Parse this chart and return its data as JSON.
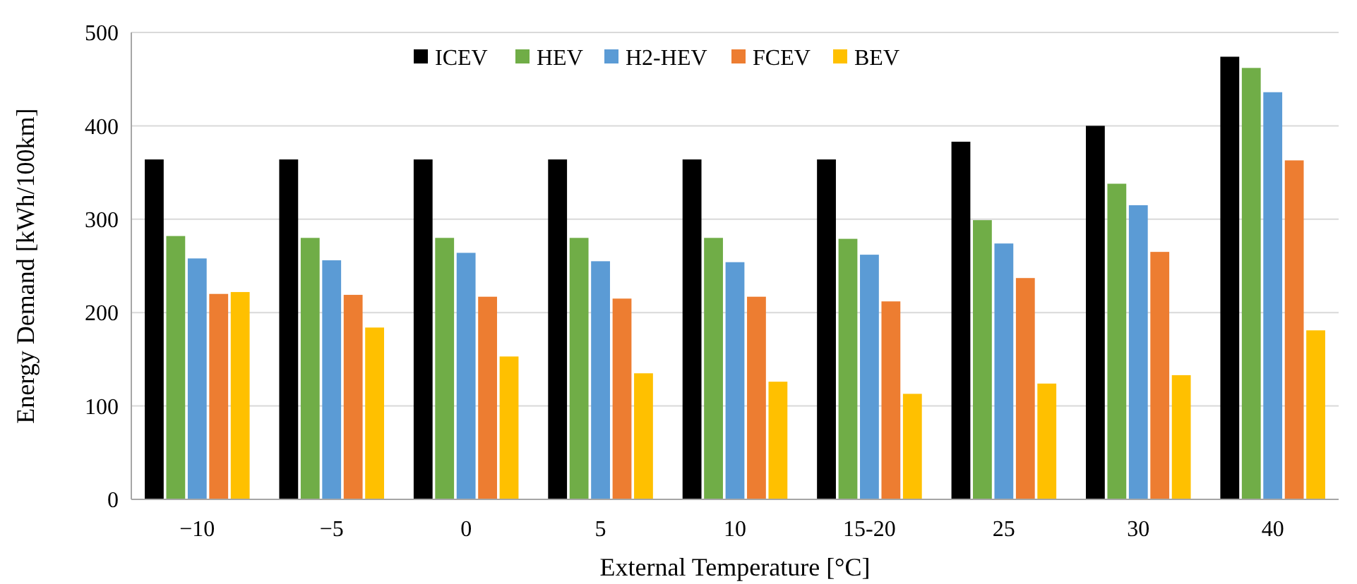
{
  "chart_data": {
    "type": "bar",
    "xlabel": "External Temperature [°C]",
    "ylabel": "Energy Demand [kWh/100km]",
    "categories": [
      "−10",
      "−5",
      "0",
      "5",
      "10",
      "15-20",
      "25",
      "30",
      "40"
    ],
    "series": [
      {
        "name": "ICEV",
        "color": "#000000",
        "values": [
          364,
          364,
          364,
          364,
          364,
          364,
          383,
          400,
          474
        ]
      },
      {
        "name": "HEV",
        "color": "#70ad47",
        "values": [
          282,
          280,
          280,
          280,
          280,
          279,
          299,
          338,
          462
        ]
      },
      {
        "name": "H2-HEV",
        "color": "#5b9bd5",
        "values": [
          258,
          256,
          264,
          255,
          254,
          262,
          274,
          315,
          436
        ]
      },
      {
        "name": "FCEV",
        "color": "#ed7d31",
        "values": [
          220,
          219,
          217,
          215,
          217,
          212,
          237,
          265,
          363
        ]
      },
      {
        "name": "BEV",
        "color": "#ffc000",
        "values": [
          222,
          184,
          153,
          135,
          126,
          113,
          124,
          133,
          181
        ]
      }
    ],
    "ylim": [
      0,
      500
    ],
    "yticks": [
      0,
      100,
      200,
      300,
      400,
      500
    ],
    "grid": "y",
    "legend": "top"
  }
}
